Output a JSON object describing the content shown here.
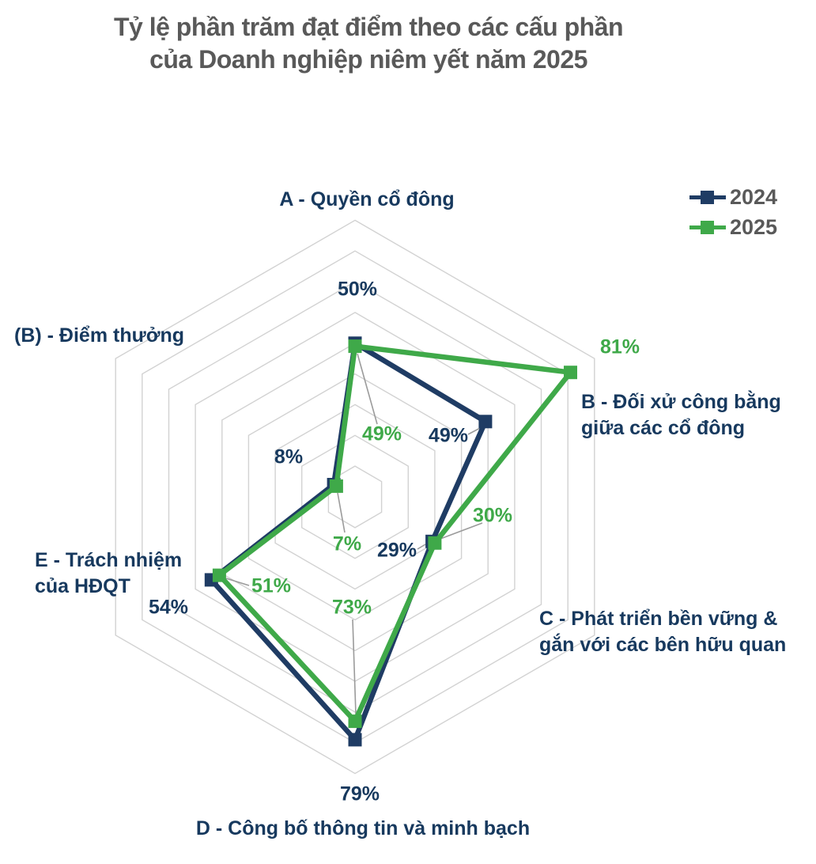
{
  "title": {
    "line1": "Tỷ lệ phần trăm đạt điểm theo các cấu phần",
    "line2": "của Doanh nghiệp niêm yết năm 2025"
  },
  "legend": {
    "items": [
      {
        "label": "2024",
        "color": "#1F3C64"
      },
      {
        "label": "2025",
        "color": "#3FA949"
      }
    ]
  },
  "colors": {
    "series_2024": "#1F3C64",
    "series_2025": "#3FA949",
    "axis_label_text": "#17395E",
    "value_label_2024": "#17395E",
    "value_label_2025": "#3FA949",
    "title_text": "#595959",
    "gridline": "#D2D2D2",
    "leader_line": "#9B9B9B",
    "background": "#FFFFFF"
  },
  "chart_data": {
    "type": "radar",
    "title": "Tỷ lệ phần trăm đạt điểm theo các cấu phần của Doanh nghiệp niêm yết năm 2025",
    "categories": [
      {
        "key": "A",
        "name": "A - Quyền cổ đông",
        "lines": [
          "A - Quyền cổ đông"
        ]
      },
      {
        "key": "B",
        "name": "B - Đối xử công bằng giữa các cổ đông",
        "lines": [
          "B - Đối xử công bằng",
          "giữa các cổ đông"
        ]
      },
      {
        "key": "C",
        "name": "C - Phát triển bền vững & gắn với các bên hữu quan",
        "lines": [
          "C - Phát triển bền vững &",
          "gắn với các bên hữu quan"
        ]
      },
      {
        "key": "D",
        "name": "D - Công bố thông tin và minh bạch",
        "lines": [
          "D - Công bố thông tin và minh bạch"
        ]
      },
      {
        "key": "E",
        "name": "E - Trách nhiệm của HĐQT",
        "lines": [
          "E - Trách nhiệm",
          "của HĐQT"
        ]
      },
      {
        "key": "(B)",
        "name": "(B) - Điểm thưởng",
        "lines": [
          "(B) - Điểm thưởng"
        ]
      }
    ],
    "series": [
      {
        "name": "2024",
        "color": "#1F3C64",
        "values": [
          50,
          49,
          29,
          79,
          54,
          8
        ],
        "labels": [
          "50%",
          "49%",
          "29%",
          "79%",
          "54%",
          "8%"
        ]
      },
      {
        "name": "2025",
        "color": "#3FA949",
        "values": [
          49,
          81,
          30,
          73,
          51,
          7
        ],
        "labels": [
          "49%",
          "81%",
          "30%",
          "73%",
          "51%",
          "7%"
        ]
      }
    ],
    "axis": {
      "min": 0,
      "max": 90,
      "step": 10,
      "unit": "percent",
      "gridlines": "concentric hexagons",
      "spokes": false
    },
    "legend_position": "top-right",
    "marker": "square"
  }
}
